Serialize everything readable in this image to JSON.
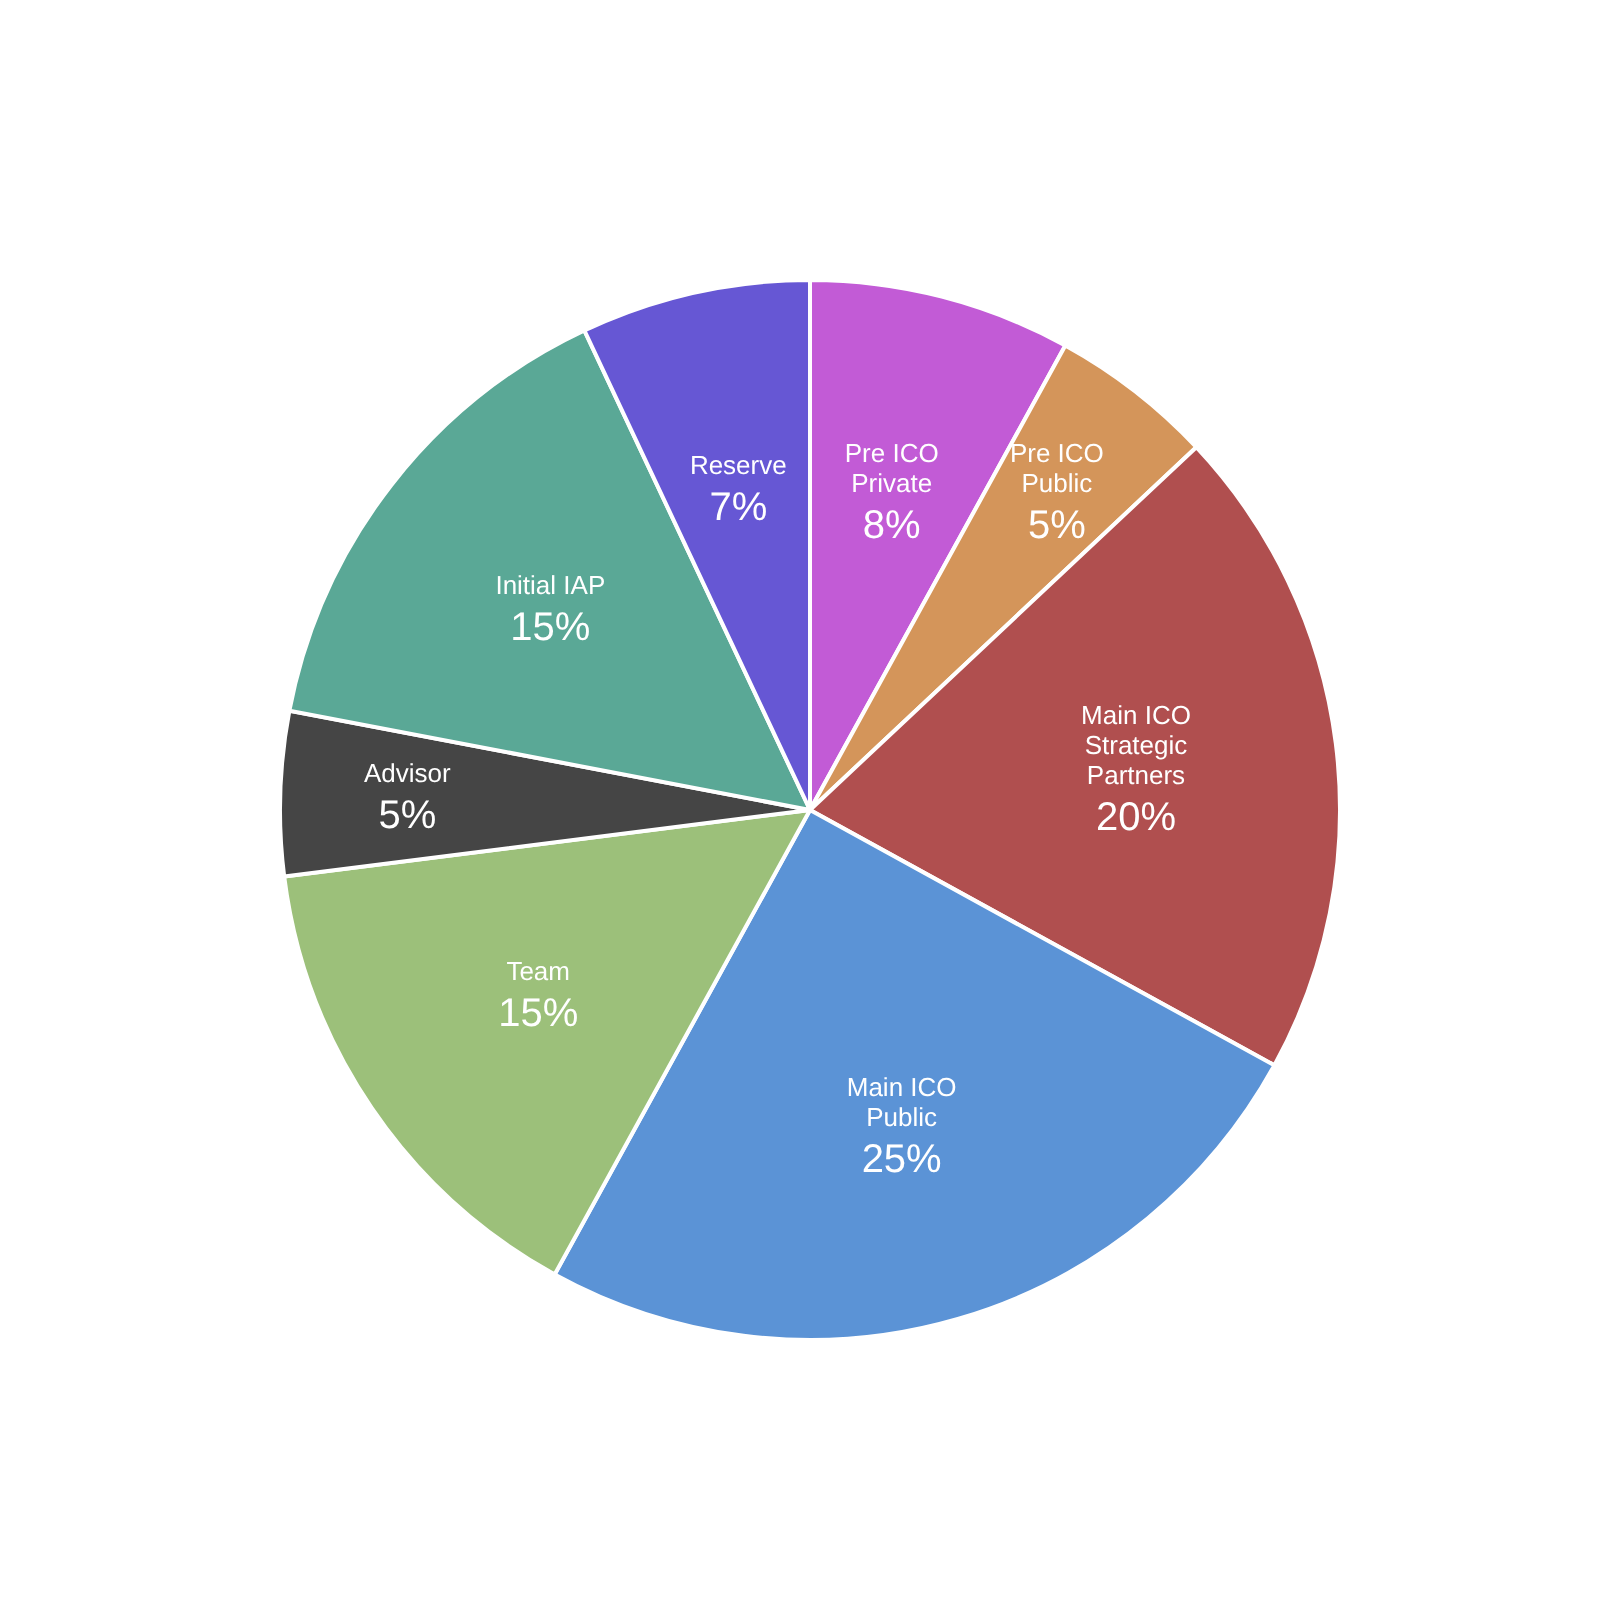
{
  "chart_data": {
    "type": "pie",
    "categories": [
      "Pre ICO Private",
      "Pre ICO Public",
      "Main ICO Strategic Partners",
      "Main ICO Public",
      "Team",
      "Advisor",
      "Initial IAP",
      "Reserve"
    ],
    "values": [
      8,
      5,
      20,
      25,
      15,
      5,
      15,
      7
    ],
    "value_labels": [
      "8%",
      "5%",
      "20%",
      "25%",
      "15%",
      "5%",
      "15%",
      "7%"
    ],
    "colors": [
      "#c25bd6",
      "#d4955a",
      "#b04f4f",
      "#5b93d6",
      "#9cc07a",
      "#454545",
      "#5aa896",
      "#6657d4"
    ],
    "legend": false
  }
}
